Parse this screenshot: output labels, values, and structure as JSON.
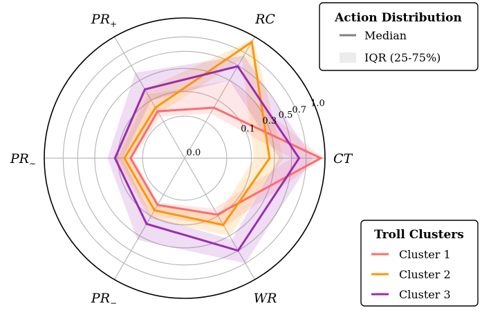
{
  "chart_data": {
    "type": "radar",
    "axes": [
      {
        "id": "CT",
        "label": "CT",
        "sub": ""
      },
      {
        "id": "RC",
        "label": "RC",
        "sub": ""
      },
      {
        "id": "PRp",
        "label": "PR",
        "sub": "+"
      },
      {
        "id": "PRn",
        "label": "PR",
        "sub": "∼"
      },
      {
        "id": "PRm",
        "label": "PR",
        "sub": "−"
      },
      {
        "id": "WR",
        "label": "WR",
        "sub": ""
      }
    ],
    "radial_ticks": [
      {
        "value": 0.0,
        "label": "0.0"
      },
      {
        "value": 0.1,
        "label": "0.1"
      },
      {
        "value": 0.3,
        "label": "0.3"
      },
      {
        "value": 0.5,
        "label": "0.5"
      },
      {
        "value": 0.7,
        "label": "0.7"
      },
      {
        "value": 1.0,
        "label": "1.0"
      }
    ],
    "series": [
      {
        "name": "Cluster 1",
        "color": "#ff6b6b",
        "median": [
          0.93,
          0.05,
          0.03,
          0.03,
          0.03,
          0.09
        ],
        "q25": [
          0.5,
          0.02,
          0.01,
          0.02,
          0.02,
          0.05
        ],
        "q75": [
          0.97,
          0.3,
          0.15,
          0.1,
          0.1,
          0.2
        ]
      },
      {
        "name": "Cluster 2",
        "color": "#ff9500",
        "median": [
          0.25,
          0.9,
          0.05,
          0.06,
          0.06,
          0.18
        ],
        "q25": [
          0.12,
          0.6,
          0.02,
          0.03,
          0.03,
          0.1
        ],
        "q75": [
          0.4,
          0.95,
          0.2,
          0.12,
          0.12,
          0.3
        ]
      },
      {
        "name": "Cluster 3",
        "color": "#9a2bb5",
        "median": [
          0.6,
          0.49,
          0.2,
          0.12,
          0.17,
          0.5
        ],
        "q25": [
          0.35,
          0.3,
          0.1,
          0.07,
          0.1,
          0.35
        ],
        "q75": [
          0.8,
          0.66,
          0.4,
          0.18,
          0.35,
          0.7
        ]
      }
    ],
    "legends": {
      "action": {
        "title": "Action Distribution",
        "items": [
          {
            "label": "Median",
            "kind": "line",
            "color": "#808080"
          },
          {
            "label": "IQR (25-75%)",
            "kind": "patch",
            "color": "#eeeeee"
          }
        ]
      },
      "clusters": {
        "title": "Troll Clusters"
      }
    }
  }
}
